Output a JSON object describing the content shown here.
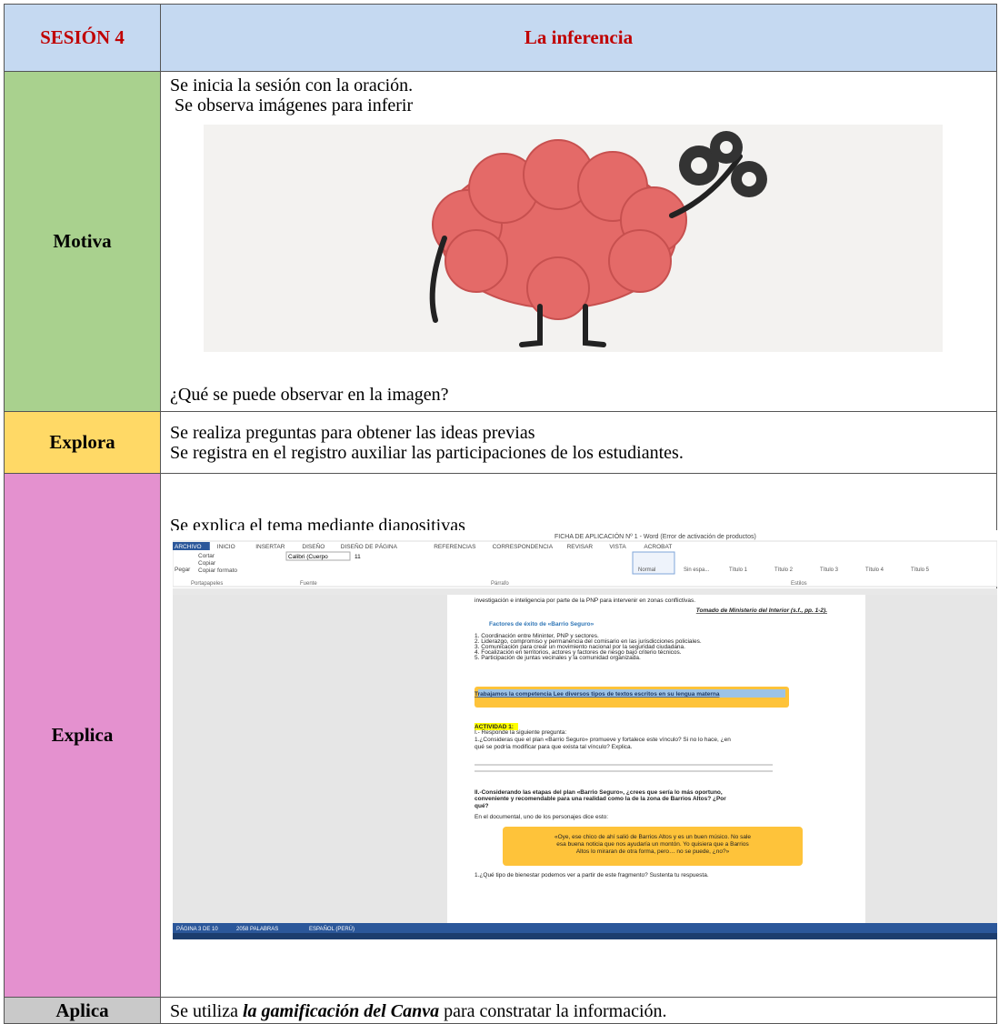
{
  "header": {
    "session": "SESIÓN 4",
    "title": "La inferencia"
  },
  "rows": [
    {
      "label": "Motiva",
      "lines": [
        "Se inicia la sesión con la oración.",
        "Se observa imágenes para inferir"
      ],
      "after": "¿Qué se puede observar en la imagen?"
    },
    {
      "label": "Explora",
      "lines": [
        "Se realiza preguntas para obtener las ideas previas",
        "Se registra en el registro auxiliar las participaciones de los estudiantes."
      ]
    },
    {
      "label": "Explica",
      "lines": [
        "Se explica el tema mediante diapositivas"
      ]
    },
    {
      "label": "Aplica",
      "before": "Se utiliza ",
      "emph": "la gamificación del Canva",
      "after": "  para constratar la información."
    }
  ],
  "word": {
    "title": "FICHA DE APLICACIÓN Nº 1 - Word (Error de activación de productos)",
    "tabs": [
      "ARCHIVO",
      "INICIO",
      "INSERTAR",
      "DISEÑO",
      "DISEÑO DE PÁGINA",
      "REFERENCIAS",
      "CORRESPONDENCIA",
      "REVISAR",
      "VISTA",
      "ACROBAT"
    ],
    "groups": [
      "Portapapeles",
      "Fuente",
      "Párrafo",
      "Estilos"
    ],
    "clipboard": [
      "Cortar",
      "Copiar",
      "Pegar",
      "Copiar formato"
    ],
    "font": "Calibri (Cuerpo",
    "size": "11",
    "styles": [
      "Normal",
      "Sin espa...",
      "Título 1",
      "Título 2",
      "Título 3",
      "Título 4",
      "Título 5"
    ],
    "doc": [
      "investigación e inteligencia por parte de la PNP para intervenir en zonas conflictivas.",
      "Tomado de Ministerio del Interior (s.f., pp. 1-2).",
      "Factores de éxito de «Barrio Seguro»",
      "1. Coordinación entre Mininter, PNP y sectores.",
      "2. Liderazgo, compromiso y permanencia del comisario en las jurisdicciones policiales.",
      "3. Comunicación para crear un movimiento nacional por la seguridad ciudadana.",
      "4. Focalización en territorios, actores y factores de riesgo bajo criterio técnicos.",
      "5. Participación de juntas vecinales y la comunidad organizada.",
      "Trabajamos la competencia  Lee diversos tipos de textos escritos en su lengua materna",
      "ACTIVIDAD 1:",
      "I.- Responde la siguiente pregunta:",
      "1.¿Consideras que el plan «Barrio Seguro» promueve y fortalece este vínculo? Si no lo hace, ¿en",
      "qué se podría modificar para que exista tal vínculo? Explica.",
      "II.-Considerando las etapas del plan «Barrio Seguro», ¿crees que sería lo más oportuno,",
      "conveniente y recomendable para una realidad como la de la zona de Barrios Altos? ¿Por",
      "qué?",
      "En el documental, uno de los personajes dice esto:",
      "«Oye, ese chico de ahí salió de Barrios Altos y es un buen músico. No sale",
      "esa buena noticia que nos ayudaría un montón. Yo quisiera que a Barrios",
      "Altos lo miraran de otra forma, pero… no se puede, ¿no?»",
      "1.¿Qué tipo de bienestar podemos ver a partir de este fragmento? Sustenta tu respuesta."
    ],
    "status": [
      "PÁGINA 3 DE 10",
      "2058 PALABRAS",
      "ESPAÑOL (PERÚ)"
    ]
  }
}
